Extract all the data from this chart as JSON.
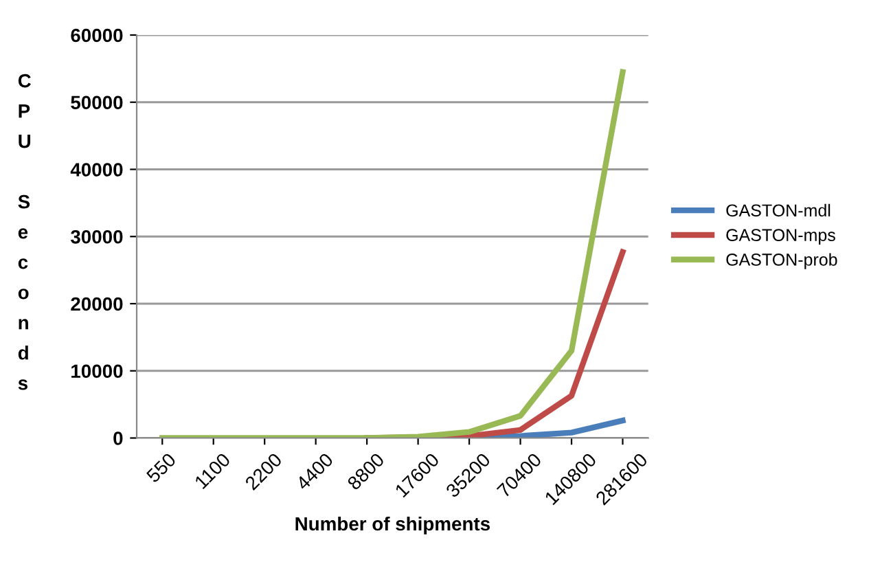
{
  "chart_data": {
    "type": "line",
    "xlabel": "Number of shipments",
    "ylabel": "CPU Seconds",
    "categories": [
      "550",
      "1100",
      "2200",
      "4400",
      "8800",
      "17600",
      "35200",
      "70400",
      "140800",
      "281600"
    ],
    "series": [
      {
        "name": "GASTON-mdl",
        "color": "#4a7ebb",
        "values": [
          null,
          null,
          null,
          null,
          null,
          null,
          100,
          300,
          800,
          2600
        ]
      },
      {
        "name": "GASTON-mps",
        "color": "#be4b48",
        "values": [
          null,
          null,
          null,
          null,
          0,
          100,
          300,
          1200,
          6300,
          27700
        ]
      },
      {
        "name": "GASTON-prob",
        "color": "#98b954",
        "values": [
          0,
          0,
          0,
          0,
          0,
          200,
          900,
          3300,
          13000,
          54500
        ]
      }
    ],
    "ylim": [
      0,
      60000
    ],
    "yticks": [
      0,
      10000,
      20000,
      30000,
      40000,
      50000,
      60000
    ],
    "grid": "y",
    "legend": "right",
    "marker": "none",
    "line_style": "solid"
  }
}
